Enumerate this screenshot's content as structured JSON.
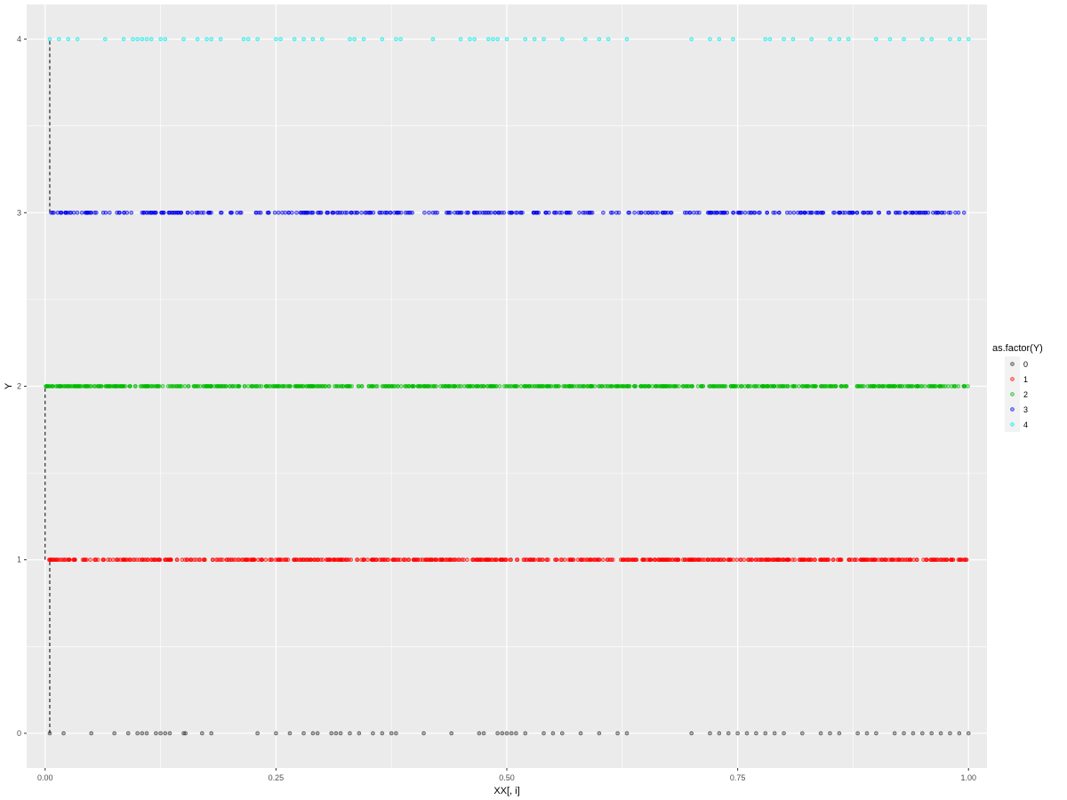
{
  "chart_data": {
    "type": "scatter",
    "title": "",
    "xlabel": "XX[, i]",
    "ylabel": "Y",
    "xlim": [
      -0.02,
      1.02
    ],
    "ylim": [
      -0.2,
      4.2
    ],
    "x_ticks": [
      0.0,
      0.25,
      0.5,
      0.75,
      1.0
    ],
    "x_tick_labels": [
      "0.00",
      "0.25",
      "0.50",
      "0.75",
      "1.00"
    ],
    "y_ticks": [
      0,
      1,
      2,
      3,
      4
    ],
    "y_tick_labels": [
      "0",
      "1",
      "2",
      "3",
      "4"
    ],
    "grid": true,
    "legend_title": "as.factor(Y)",
    "legend_placement": "right",
    "colors": {
      "panel_bg": "#ebebeb",
      "grid": "#ffffff",
      "0": "#333333",
      "1": "#ff0000",
      "2": "#00bb00",
      "3": "#0000ee",
      "4": "#00eeee"
    },
    "series": [
      {
        "name": "0",
        "y": 0,
        "x": [
          0.005,
          0.02,
          0.05,
          0.075,
          0.09,
          0.1,
          0.105,
          0.11,
          0.12,
          0.125,
          0.13,
          0.135,
          0.15,
          0.152,
          0.17,
          0.18,
          0.23,
          0.25,
          0.265,
          0.28,
          0.29,
          0.295,
          0.31,
          0.315,
          0.32,
          0.33,
          0.34,
          0.355,
          0.365,
          0.375,
          0.38,
          0.41,
          0.44,
          0.47,
          0.475,
          0.49,
          0.495,
          0.5,
          0.505,
          0.51,
          0.52,
          0.54,
          0.55,
          0.56,
          0.58,
          0.6,
          0.62,
          0.63,
          0.7,
          0.72,
          0.73,
          0.74,
          0.75,
          0.76,
          0.77,
          0.78,
          0.79,
          0.8,
          0.82,
          0.84,
          0.85,
          0.86,
          0.88,
          0.89,
          0.9,
          0.92,
          0.93,
          0.94,
          0.95,
          0.96,
          0.97,
          0.98,
          0.99,
          1.0
        ]
      },
      {
        "name": "1",
        "y": 1,
        "x_range": [
          0.0,
          1.0
        ],
        "count": 700
      },
      {
        "name": "2",
        "y": 2,
        "x_range": [
          0.0,
          1.0
        ],
        "count": 800
      },
      {
        "name": "3",
        "y": 3,
        "x_range": [
          0.005,
          1.0
        ],
        "count": 400
      },
      {
        "name": "4",
        "y": 4,
        "x": [
          0.005,
          0.015,
          0.025,
          0.035,
          0.065,
          0.085,
          0.095,
          0.1,
          0.105,
          0.11,
          0.115,
          0.125,
          0.13,
          0.15,
          0.165,
          0.175,
          0.18,
          0.19,
          0.215,
          0.22,
          0.23,
          0.25,
          0.255,
          0.27,
          0.28,
          0.29,
          0.3,
          0.33,
          0.335,
          0.345,
          0.365,
          0.38,
          0.385,
          0.42,
          0.45,
          0.46,
          0.465,
          0.48,
          0.485,
          0.49,
          0.5,
          0.52,
          0.53,
          0.54,
          0.56,
          0.585,
          0.6,
          0.61,
          0.63,
          0.7,
          0.72,
          0.73,
          0.745,
          0.78,
          0.785,
          0.8,
          0.81,
          0.83,
          0.85,
          0.86,
          0.87,
          0.9,
          0.915,
          0.93,
          0.95,
          0.96,
          0.98,
          0.99,
          1.0
        ]
      }
    ],
    "threshold_lines": [
      {
        "x": 0.0,
        "y_from": 1.0,
        "y_to": 2.0
      },
      {
        "x": 0.005,
        "y_from": 3.0,
        "y_to": 4.0
      },
      {
        "x": 0.005,
        "y_from": 0.0,
        "y_to": 1.0
      }
    ]
  }
}
